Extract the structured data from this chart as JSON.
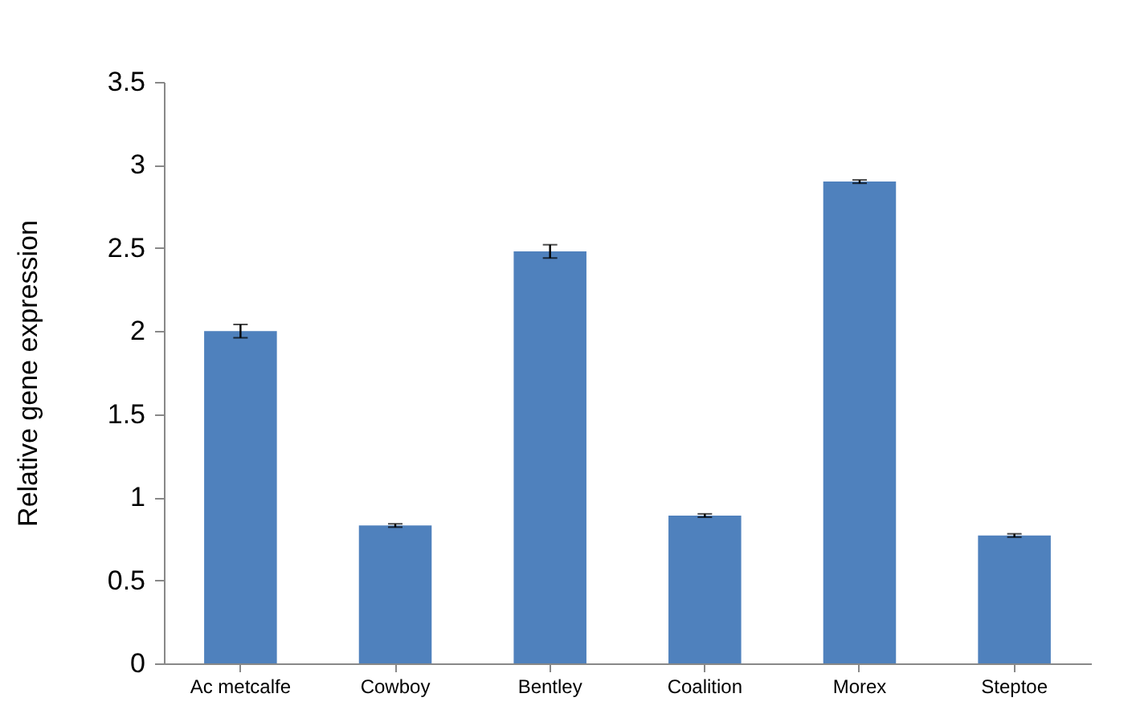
{
  "chart_data": {
    "type": "bar",
    "ylabel": "Relative gene expression",
    "categories": [
      "Ac metcalfe",
      "Cowboy",
      "Bentley",
      "Coalition",
      "Morex",
      "Steptoe"
    ],
    "values": [
      2.0,
      0.83,
      2.48,
      0.89,
      2.9,
      0.77
    ],
    "errors": [
      0.04,
      0.01,
      0.04,
      0.01,
      0.01,
      0.01
    ],
    "color": "#4f81bd",
    "ylim": [
      0,
      3.5
    ],
    "yticks": [
      0,
      0.5,
      1,
      1.5,
      2,
      2.5,
      3,
      3.5
    ],
    "grid": false
  }
}
